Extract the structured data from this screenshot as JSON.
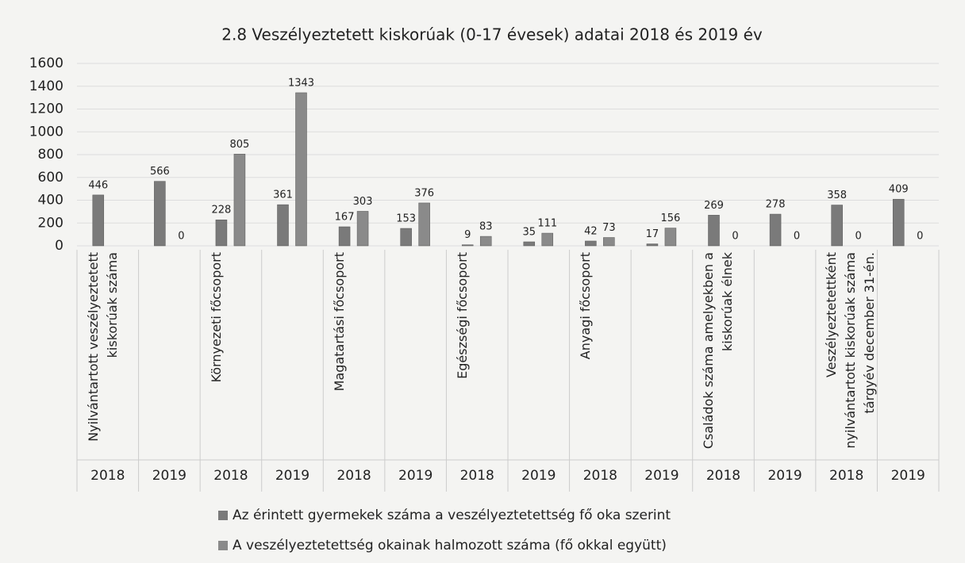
{
  "chart_data": {
    "type": "bar",
    "title": "2.8 Veszélyeztetett kiskorúak (0-17 évesek) adatai 2018 és 2019 év",
    "categories": [
      "2018",
      "2019",
      "2018",
      "2019",
      "2018",
      "2019",
      "2018",
      "2019",
      "2018",
      "2019",
      "2018",
      "2019",
      "2018",
      "2019"
    ],
    "category_groups": [
      "Nyilvántartott veszélyeztetett kiskorúak száma",
      "Környezeti főcsoport",
      "Magatartási főcsoport",
      "Egészségi főcsoport",
      "Anyagi főcsoport",
      "Családok száma amelyekben a kiskorúak élnek",
      "Veszélyeztetettként nyilvántartott kiskorúak száma tárgyév december 31-én."
    ],
    "series": [
      {
        "name": "Az érintett gyermekek száma a veszélyeztetettség fő oka szerint",
        "color": "#7a7a7a",
        "values": [
          446,
          566,
          228,
          361,
          167,
          153,
          9,
          35,
          42,
          17,
          269,
          278,
          358,
          409
        ]
      },
      {
        "name": "A veszélyeztetettség okainak halmozott száma (fő okkal együtt)",
        "color": "#8a8a8a",
        "values": [
          null,
          0,
          805,
          1343,
          303,
          376,
          83,
          111,
          73,
          156,
          0,
          0,
          0,
          0
        ]
      }
    ],
    "ylim": [
      0,
      1600
    ],
    "yticks": [
      0,
      200,
      400,
      600,
      800,
      1000,
      1200,
      1400,
      1600
    ],
    "grid": true
  }
}
